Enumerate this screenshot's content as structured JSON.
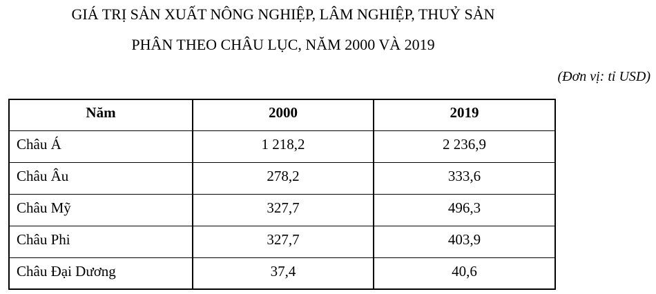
{
  "page": {
    "background": "#ffffff",
    "text_color": "#000000",
    "border_color": "#000000"
  },
  "title": {
    "line1": "GIÁ TRỊ SẢN XUẤT NÔNG NGHIỆP, LÂM NGHIỆP, THUỶ SẢN",
    "line2": "PHÂN THEO CHÂU LỤC, NĂM 2000 VÀ 2019"
  },
  "unit_note": "(Đơn vị: tỉ USD)",
  "table": {
    "columns": [
      "Năm",
      "2000",
      "2019"
    ],
    "rows": [
      {
        "label": "Châu Á",
        "y2000": "1 218,2",
        "y2019": "2 236,9"
      },
      {
        "label": "Châu Âu",
        "y2000": "278,2",
        "y2019": "333,6"
      },
      {
        "label": "Châu Mỹ",
        "y2000": "327,7",
        "y2019": "496,3"
      },
      {
        "label": "Châu Phi",
        "y2000": "327,7",
        "y2019": "403,9"
      },
      {
        "label": "Châu Đại Dương",
        "y2000": "37,4",
        "y2019": "40,6"
      }
    ]
  },
  "chart_data": {
    "type": "table",
    "title": "GIÁ TRỊ SẢN XUẤT NÔNG NGHIỆP, LÂM NGHIỆP, THUỶ SẢN PHÂN THEO CHÂU LỤC, NĂM 2000 VÀ 2019",
    "unit": "tỉ USD",
    "categories": [
      "Châu Á",
      "Châu Âu",
      "Châu Mỹ",
      "Châu Phi",
      "Châu Đại Dương"
    ],
    "series": [
      {
        "name": "2000",
        "values": [
          1218.2,
          278.2,
          327.7,
          327.7,
          37.4
        ]
      },
      {
        "name": "2019",
        "values": [
          2236.9,
          333.6,
          496.3,
          403.9,
          40.6
        ]
      }
    ],
    "row_header_label": "Năm",
    "grid": true,
    "legend_position": "none"
  }
}
